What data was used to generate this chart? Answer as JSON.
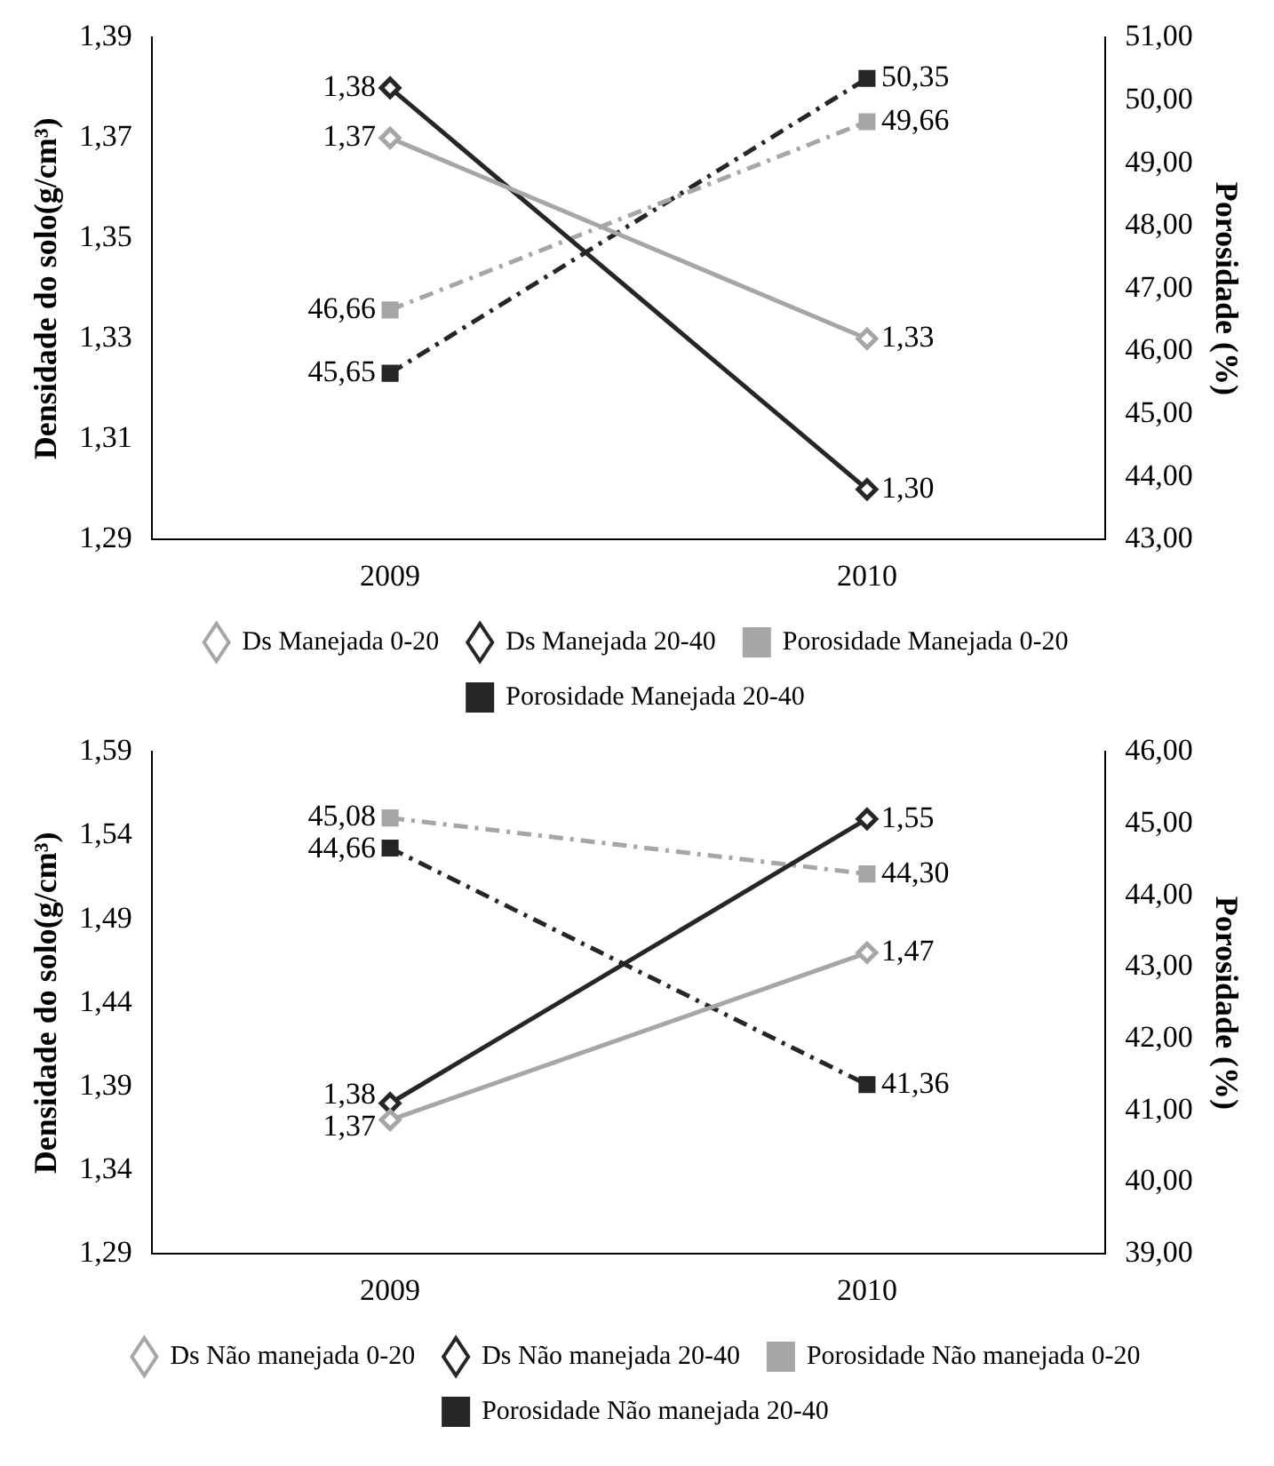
{
  "chart_data": [
    {
      "type": "line",
      "categories": [
        "2009",
        "2010"
      ],
      "ylabel": "Densidade do solo(g/cm³)",
      "y2label": "Porosidade (%)",
      "ylim": [
        1.29,
        1.39
      ],
      "yticks": [
        {
          "value": 1.29,
          "label": "1,29"
        },
        {
          "value": 1.31,
          "label": "1,31"
        },
        {
          "value": 1.33,
          "label": "1,33"
        },
        {
          "value": 1.35,
          "label": "1,35"
        },
        {
          "value": 1.37,
          "label": "1,37"
        },
        {
          "value": 1.39,
          "label": "1,39"
        }
      ],
      "y2lim": [
        43,
        51
      ],
      "y2ticks": [
        {
          "value": 43,
          "label": "43,00"
        },
        {
          "value": 44,
          "label": "44,00"
        },
        {
          "value": 45,
          "label": "45,00"
        },
        {
          "value": 46,
          "label": "46,00"
        },
        {
          "value": 47,
          "label": "47,00"
        },
        {
          "value": 48,
          "label": "48,00"
        },
        {
          "value": 49,
          "label": "49,00"
        },
        {
          "value": 50,
          "label": "50,00"
        },
        {
          "value": 51,
          "label": "51,00"
        }
      ],
      "legend": "bottom",
      "series": [
        {
          "name": "Ds Manejada 0-20",
          "color": "#a6a6a6",
          "values": [
            1.37,
            1.33
          ],
          "value_labels": [
            "1,37",
            "1,33"
          ],
          "marker": "diamond",
          "line_style": "solid"
        },
        {
          "name": "Ds Manejada 20-40",
          "color": "#262626",
          "values": [
            1.38,
            1.3
          ],
          "value_labels": [
            "1,38",
            "1,30"
          ],
          "marker": "diamond",
          "line_style": "solid"
        },
        {
          "name": "Porosidade Manejada 0-20",
          "color": "#a6a6a6",
          "values": [
            46.66,
            49.66
          ],
          "value_labels": [
            "46,66",
            "49,66"
          ],
          "axis": "y2",
          "marker": "square",
          "line_style": "dashed"
        },
        {
          "name": "Porosidade Manejada 20-40",
          "color": "#262626",
          "values": [
            45.65,
            50.35
          ],
          "value_labels": [
            "45,65",
            "50,35"
          ],
          "axis": "y2",
          "marker": "square",
          "line_style": "dashed"
        }
      ]
    },
    {
      "type": "line",
      "categories": [
        "2009",
        "2010"
      ],
      "ylabel": "Densidade do solo(g/cm³)",
      "y2label": "Porosidade (%)",
      "ylim": [
        1.29,
        1.59
      ],
      "yticks": [
        {
          "value": 1.29,
          "label": "1,29"
        },
        {
          "value": 1.34,
          "label": "1,34"
        },
        {
          "value": 1.39,
          "label": "1,39"
        },
        {
          "value": 1.44,
          "label": "1,44"
        },
        {
          "value": 1.49,
          "label": "1,49"
        },
        {
          "value": 1.54,
          "label": "1,54"
        },
        {
          "value": 1.59,
          "label": "1,59"
        }
      ],
      "y2lim": [
        39,
        46
      ],
      "y2ticks": [
        {
          "value": 39,
          "label": "39,00"
        },
        {
          "value": 40,
          "label": "40,00"
        },
        {
          "value": 41,
          "label": "41,00"
        },
        {
          "value": 42,
          "label": "42,00"
        },
        {
          "value": 43,
          "label": "43,00"
        },
        {
          "value": 44,
          "label": "44,00"
        },
        {
          "value": 45,
          "label": "45,00"
        },
        {
          "value": 46,
          "label": "46,00"
        }
      ],
      "legend": "bottom",
      "series": [
        {
          "name": "Ds Não manejada 0-20",
          "color": "#a6a6a6",
          "values": [
            1.37,
            1.47
          ],
          "value_labels": [
            "1,37",
            "1,47"
          ],
          "marker": "diamond",
          "line_style": "solid"
        },
        {
          "name": "Ds Não manejada 20-40",
          "color": "#262626",
          "values": [
            1.38,
            1.55
          ],
          "value_labels": [
            "1,38",
            "1,55"
          ],
          "marker": "diamond",
          "line_style": "solid"
        },
        {
          "name": "Porosidade Não manejada 0-20",
          "color": "#a6a6a6",
          "values": [
            45.08,
            44.3
          ],
          "value_labels": [
            "45,08",
            "44,30"
          ],
          "axis": "y2",
          "marker": "square",
          "line_style": "dashed"
        },
        {
          "name": "Porosidade Não manejada 20-40",
          "color": "#262626",
          "values": [
            44.66,
            41.36
          ],
          "value_labels": [
            "44,66",
            "41,36"
          ],
          "axis": "y2",
          "marker": "square",
          "line_style": "dashed"
        }
      ]
    }
  ]
}
